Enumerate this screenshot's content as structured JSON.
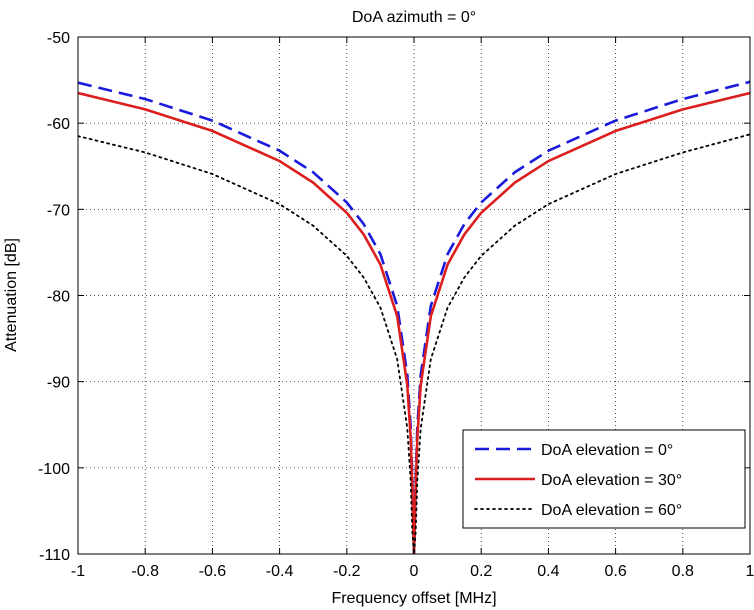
{
  "chart_data": {
    "type": "line",
    "title": "DoA azimuth = 0°",
    "xlabel": "Frequency offset [MHz]",
    "ylabel": "Attenuation [dB]",
    "xlim": [
      -1,
      1
    ],
    "ylim": [
      -110,
      -50
    ],
    "xticks": [
      -1,
      -0.8,
      -0.6,
      -0.4,
      -0.2,
      0,
      0.2,
      0.4,
      0.6,
      0.8,
      1
    ],
    "xtick_labels": [
      "-1",
      "-0.8",
      "-0.6",
      "-0.4",
      "-0.2",
      "0",
      "0.2",
      "0.4",
      "0.6",
      "0.8",
      "1"
    ],
    "yticks": [
      -50,
      -60,
      -70,
      -80,
      -90,
      -100,
      -110
    ],
    "ytick_labels": [
      "-50",
      "-60",
      "-70",
      "-80",
      "-90",
      "-100",
      "-110"
    ],
    "grid": true,
    "legend_position": "bottom-right",
    "x": [
      -1,
      -0.8,
      -0.6,
      -0.4,
      -0.3,
      -0.2,
      -0.15,
      -0.1,
      -0.05,
      -0.02,
      -0.01,
      -0.005,
      0,
      0.005,
      0.01,
      0.02,
      0.05,
      0.1,
      0.15,
      0.2,
      0.3,
      0.4,
      0.6,
      0.8,
      1
    ],
    "series": [
      {
        "name": "DoA elevation = 0°",
        "color": "#1a1adc",
        "style": "dashed",
        "values": [
          -55.3,
          -57.2,
          -59.7,
          -63.2,
          -65.7,
          -69.2,
          -71.7,
          -75.2,
          -81.2,
          -89.2,
          -95.2,
          -101.2,
          -110,
          -101.2,
          -95.2,
          -89.2,
          -81.2,
          -75.2,
          -71.7,
          -69.2,
          -65.7,
          -63.2,
          -59.7,
          -57.2,
          -55.2
        ]
      },
      {
        "name": "DoA elevation = 30°",
        "color": "#dc1e1e",
        "style": "solid",
        "values": [
          -56.5,
          -58.4,
          -60.9,
          -64.4,
          -66.9,
          -70.4,
          -72.9,
          -76.4,
          -82.4,
          -90.4,
          -96.4,
          -102.4,
          -110,
          -102.4,
          -96.4,
          -90.4,
          -82.4,
          -76.4,
          -72.9,
          -70.4,
          -66.9,
          -64.4,
          -60.9,
          -58.4,
          -56.5
        ]
      },
      {
        "name": "DoA elevation = 60°",
        "color": "#000000",
        "style": "dotted",
        "values": [
          -61.5,
          -63.4,
          -65.9,
          -69.4,
          -71.9,
          -75.4,
          -77.9,
          -81.4,
          -87.4,
          -95.4,
          -101.4,
          -107.4,
          -110,
          -107.4,
          -101.4,
          -95.4,
          -87.4,
          -81.4,
          -77.9,
          -75.4,
          -71.9,
          -69.4,
          -65.9,
          -63.4,
          -61.3
        ]
      }
    ]
  }
}
